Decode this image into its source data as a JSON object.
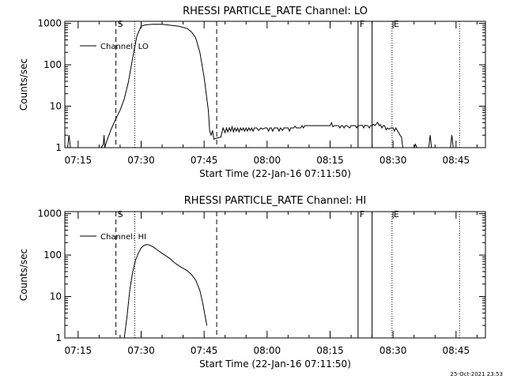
{
  "stamp": "25-Oct-2021 23:53",
  "chart_data": [
    {
      "type": "line",
      "title": "RHESSI PARTICLE_RATE Channel: LO",
      "xlabel": "Start Time (22-Jan-16 07:11:50)",
      "ylabel": "Counts/sec",
      "yscale": "log",
      "ylim": [
        1,
        1000
      ],
      "xlim": [
        "07:11:50",
        "08:52:00"
      ],
      "xtick_labels": [
        "07:15",
        "07:30",
        "07:45",
        "08:00",
        "08:15",
        "08:30",
        "08:45"
      ],
      "ytick_labels": [
        "1",
        "10",
        "100",
        "1000"
      ],
      "legend_loc": "upper-left",
      "markers": [
        {
          "time": "07:24:00",
          "style": "dashed",
          "label": "S"
        },
        {
          "time": "07:28:30",
          "style": "dotted",
          "label": ""
        },
        {
          "time": "07:48:00",
          "style": "dashed",
          "label": ""
        },
        {
          "time": "08:21:40",
          "style": "solid",
          "label": "F"
        },
        {
          "time": "08:25:00",
          "style": "solid",
          "label": ""
        },
        {
          "time": "08:29:45",
          "style": "dotted",
          "label": "E"
        },
        {
          "time": "08:45:50",
          "style": "dotted",
          "label": ""
        }
      ],
      "series": [
        {
          "name": "Channel: LO",
          "points": [
            [
              "07:12:00",
              0.3
            ],
            [
              "07:12:30",
              1.0
            ],
            [
              "07:12:50",
              2.0
            ],
            [
              "07:13:10",
              0.3
            ],
            [
              "07:20:30",
              0.3
            ],
            [
              "07:21:00",
              1.2
            ],
            [
              "07:21:10",
              2.0
            ],
            [
              "07:21:20",
              0.5
            ],
            [
              "07:21:40",
              1.3
            ],
            [
              "07:22:10",
              1.8
            ],
            [
              "07:23:00",
              3.0
            ],
            [
              "07:24:00",
              5.0
            ],
            [
              "07:25:00",
              8.0
            ],
            [
              "07:26:00",
              15.0
            ],
            [
              "07:27:00",
              40.0
            ],
            [
              "07:28:00",
              150.0
            ],
            [
              "07:29:00",
              500.0
            ],
            [
              "07:30:00",
              850.0
            ],
            [
              "07:31:00",
              920.0
            ],
            [
              "07:33:00",
              960.0
            ],
            [
              "07:35:00",
              950.0
            ],
            [
              "07:37:00",
              900.0
            ],
            [
              "07:39:00",
              850.0
            ],
            [
              "07:41:00",
              750.0
            ],
            [
              "07:42:00",
              620.0
            ],
            [
              "07:43:00",
              450.0
            ],
            [
              "07:44:00",
              200.0
            ],
            [
              "07:45:00",
              50.0
            ],
            [
              "07:46:00",
              8.0
            ],
            [
              "07:46:20",
              2.5
            ],
            [
              "07:46:40",
              2.0
            ],
            [
              "07:47:00",
              2.6
            ],
            [
              "07:47:20",
              1.6
            ],
            [
              "07:48:00",
              1.7
            ],
            [
              "07:49:00",
              1.8
            ],
            [
              "07:49:30",
              3.0
            ],
            [
              "07:50:00",
              2.3
            ],
            [
              "07:50:20",
              3.0
            ],
            [
              "07:50:40",
              2.4
            ],
            [
              "07:51:00",
              3.0
            ],
            [
              "07:51:20",
              2.5
            ],
            [
              "07:51:40",
              3.2
            ],
            [
              "07:52:00",
              2.4
            ],
            [
              "07:52:20",
              3.0
            ],
            [
              "07:52:40",
              2.5
            ],
            [
              "07:53:00",
              3.0
            ],
            [
              "07:53:20",
              2.4
            ],
            [
              "07:53:40",
              3.0
            ],
            [
              "07:54:00",
              2.6
            ],
            [
              "07:54:20",
              3.0
            ],
            [
              "07:54:40",
              2.5
            ],
            [
              "07:55:00",
              3.0
            ],
            [
              "07:55:20",
              2.5
            ],
            [
              "07:55:40",
              3.0
            ],
            [
              "07:56:00",
              2.6
            ],
            [
              "07:56:20",
              3.0
            ],
            [
              "07:56:40",
              2.5
            ],
            [
              "07:57:00",
              3.0
            ],
            [
              "07:57:30",
              3.0
            ],
            [
              "07:58:00",
              2.6
            ],
            [
              "07:58:30",
              3.0
            ],
            [
              "07:59:00",
              2.8
            ],
            [
              "07:59:30",
              3.0
            ],
            [
              "08:00:00",
              3.0
            ],
            [
              "08:00:20",
              2.5
            ],
            [
              "08:00:40",
              3.0
            ],
            [
              "08:01:00",
              3.0
            ],
            [
              "08:01:20",
              2.5
            ],
            [
              "08:01:40",
              3.0
            ],
            [
              "08:02:30",
              3.0
            ],
            [
              "08:02:50",
              2.5
            ],
            [
              "08:03:10",
              3.0
            ],
            [
              "08:03:40",
              2.6
            ],
            [
              "08:04:00",
              3.0
            ],
            [
              "08:05:00",
              3.0
            ],
            [
              "08:05:20",
              2.5
            ],
            [
              "08:05:40",
              3.0
            ],
            [
              "08:06:20",
              3.0
            ],
            [
              "08:06:40",
              3.3
            ],
            [
              "08:07:00",
              3.0
            ],
            [
              "08:08:00",
              3.0
            ],
            [
              "08:08:20",
              3.4
            ],
            [
              "08:08:40",
              3.0
            ],
            [
              "08:09:00",
              3.4
            ],
            [
              "08:09:20",
              3.4
            ],
            [
              "08:10:00",
              3.4
            ],
            [
              "08:11:00",
              3.4
            ],
            [
              "08:12:00",
              3.4
            ],
            [
              "08:13:00",
              3.4
            ],
            [
              "08:14:00",
              3.4
            ],
            [
              "08:15:00",
              3.4
            ],
            [
              "08:15:20",
              4.0
            ],
            [
              "08:15:40",
              3.2
            ],
            [
              "08:16:00",
              3.4
            ],
            [
              "08:17:00",
              3.4
            ],
            [
              "08:17:20",
              3.0
            ],
            [
              "08:17:40",
              3.4
            ],
            [
              "08:18:00",
              3.4
            ],
            [
              "08:18:20",
              3.0
            ],
            [
              "08:18:40",
              3.4
            ],
            [
              "08:19:00",
              3.4
            ],
            [
              "08:19:40",
              3.0
            ],
            [
              "08:20:00",
              3.4
            ],
            [
              "08:21:00",
              3.4
            ],
            [
              "08:21:20",
              3.0
            ],
            [
              "08:21:40",
              3.4
            ],
            [
              "08:22:00",
              3.4
            ],
            [
              "08:22:40",
              3.5
            ],
            [
              "08:23:00",
              3.0
            ],
            [
              "08:23:20",
              3.5
            ],
            [
              "08:23:40",
              3.4
            ],
            [
              "08:24:00",
              3.4
            ],
            [
              "08:24:20",
              3.0
            ],
            [
              "08:24:40",
              3.4
            ],
            [
              "08:25:00",
              3.4
            ],
            [
              "08:25:20",
              3.7
            ],
            [
              "08:25:40",
              3.4
            ],
            [
              "08:26:20",
              4.1
            ],
            [
              "08:26:40",
              3.4
            ],
            [
              "08:27:00",
              3.6
            ],
            [
              "08:27:20",
              3.0
            ],
            [
              "08:27:40",
              3.4
            ],
            [
              "08:28:00",
              3.4
            ],
            [
              "08:28:20",
              2.7
            ],
            [
              "08:28:40",
              3.0
            ],
            [
              "08:29:00",
              2.8
            ],
            [
              "08:29:30",
              3.0
            ],
            [
              "08:30:00",
              3.0
            ],
            [
              "08:30:20",
              2.5
            ],
            [
              "08:30:40",
              3.0
            ],
            [
              "08:31:00",
              2.6
            ],
            [
              "08:31:20",
              2.3
            ],
            [
              "08:31:40",
              2.0
            ],
            [
              "08:32:00",
              1.8
            ],
            [
              "08:32:20",
              1.0
            ],
            [
              "08:32:40",
              0.3
            ],
            [
              "08:35:00",
              0.3
            ],
            [
              "08:35:20",
              1.2
            ],
            [
              "08:35:40",
              0.3
            ],
            [
              "08:38:30",
              0.3
            ],
            [
              "08:38:50",
              2.0
            ],
            [
              "08:39:10",
              0.3
            ],
            [
              "08:43:40",
              0.3
            ],
            [
              "08:44:00",
              2.0
            ],
            [
              "08:44:20",
              0.3
            ]
          ]
        }
      ]
    },
    {
      "type": "line",
      "title": "RHESSI PARTICLE_RATE Channel: HI",
      "xlabel": "Start Time (22-Jan-16 07:11:50)",
      "ylabel": "Counts/sec",
      "yscale": "log",
      "ylim": [
        1,
        1000
      ],
      "xlim": [
        "07:11:50",
        "08:52:00"
      ],
      "xtick_labels": [
        "07:15",
        "07:30",
        "07:45",
        "08:00",
        "08:15",
        "08:30",
        "08:45"
      ],
      "ytick_labels": [
        "1",
        "10",
        "100",
        "1000"
      ],
      "legend_loc": "upper-left",
      "markers": [
        {
          "time": "07:24:00",
          "style": "dashed",
          "label": "S"
        },
        {
          "time": "07:28:30",
          "style": "dotted",
          "label": ""
        },
        {
          "time": "07:48:00",
          "style": "dashed",
          "label": ""
        },
        {
          "time": "08:21:40",
          "style": "solid",
          "label": "F"
        },
        {
          "time": "08:25:00",
          "style": "solid",
          "label": ""
        },
        {
          "time": "08:29:45",
          "style": "dotted",
          "label": "E"
        },
        {
          "time": "08:45:50",
          "style": "dotted",
          "label": ""
        }
      ],
      "series": [
        {
          "name": "Channel: HI",
          "points": [
            [
              "07:25:40",
              0.3
            ],
            [
              "07:26:00",
              1.0
            ],
            [
              "07:26:40",
              3.5
            ],
            [
              "07:27:20",
              15.0
            ],
            [
              "07:28:00",
              40.0
            ],
            [
              "07:28:40",
              75.0
            ],
            [
              "07:29:20",
              110.0
            ],
            [
              "07:30:00",
              150.0
            ],
            [
              "07:30:40",
              170.0
            ],
            [
              "07:31:20",
              180.0
            ],
            [
              "07:32:00",
              175.0
            ],
            [
              "07:33:00",
              155.0
            ],
            [
              "07:34:00",
              130.0
            ],
            [
              "07:35:00",
              110.0
            ],
            [
              "07:36:00",
              95.0
            ],
            [
              "07:37:00",
              80.0
            ],
            [
              "07:38:00",
              65.0
            ],
            [
              "07:39:00",
              55.0
            ],
            [
              "07:40:00",
              48.0
            ],
            [
              "07:41:00",
              42.0
            ],
            [
              "07:42:00",
              34.0
            ],
            [
              "07:43:00",
              25.0
            ],
            [
              "07:44:00",
              14.0
            ],
            [
              "07:44:40",
              7.0
            ],
            [
              "07:45:20",
              3.0
            ],
            [
              "07:45:40",
              2.0
            ]
          ]
        }
      ]
    }
  ]
}
